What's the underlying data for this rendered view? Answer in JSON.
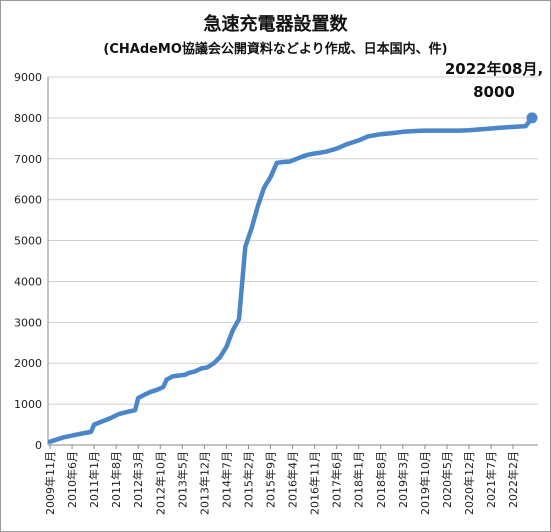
{
  "chart_data": {
    "type": "line",
    "title": "急速充電器設置数",
    "subtitle": "(CHAdeMO協議会公開資料などより作成、日本国内、件)",
    "xlabel": "",
    "ylabel": "",
    "ylim": [
      0,
      9000
    ],
    "yticks": [
      0,
      1000,
      2000,
      3000,
      4000,
      5000,
      6000,
      7000,
      8000,
      9000
    ],
    "grid": "horizontal",
    "line_color": "#4a86c8",
    "x_tick_labels": [
      "2009年11月",
      "2010年6月",
      "2011年1月",
      "2011年8月",
      "2012年3月",
      "2012年10月",
      "2013年5月",
      "2013年12月",
      "2014年7月",
      "2015年2月",
      "2015年9月",
      "2016年4月",
      "2016年11月",
      "2017年6月",
      "2018年1月",
      "2018年8月",
      "2019年3月",
      "2019年10月",
      "2020年5月",
      "2020年12月",
      "2021年7月",
      "2022年2月"
    ],
    "series": [
      {
        "x": [
          "2009-11",
          "2010-01",
          "2010-03",
          "2010-06",
          "2010-09",
          "2010-12",
          "2011-01",
          "2011-03",
          "2011-06",
          "2011-09",
          "2011-12",
          "2012-02",
          "2012-03",
          "2012-05",
          "2012-07",
          "2012-09",
          "2012-11",
          "2012-12",
          "2013-02",
          "2013-04",
          "2013-06",
          "2013-07",
          "2013-09",
          "2013-11",
          "2014-01",
          "2014-03",
          "2014-05",
          "2014-07",
          "2014-09",
          "2014-11",
          "2015-01",
          "2015-03",
          "2015-05",
          "2015-07",
          "2015-09",
          "2015-11",
          "2016-01",
          "2016-03",
          "2016-05",
          "2016-07",
          "2016-09",
          "2016-11",
          "2017-01",
          "2017-03",
          "2017-06",
          "2017-09",
          "2018-01",
          "2018-04",
          "2018-08",
          "2018-12",
          "2019-03",
          "2019-07",
          "2019-10",
          "2020-01",
          "2020-05",
          "2020-09",
          "2020-12",
          "2021-04",
          "2021-07",
          "2021-10",
          "2022-02",
          "2022-06",
          "2022-08"
        ],
        "y": [
          80,
          130,
          180,
          230,
          280,
          320,
          500,
          560,
          650,
          760,
          820,
          850,
          1150,
          1230,
          1300,
          1350,
          1420,
          1600,
          1680,
          1700,
          1720,
          1760,
          1800,
          1870,
          1900,
          2000,
          2150,
          2400,
          2800,
          3080,
          4850,
          5300,
          5850,
          6300,
          6550,
          6900,
          6920,
          6930,
          6990,
          7050,
          7100,
          7130,
          7150,
          7180,
          7250,
          7350,
          7450,
          7550,
          7600,
          7630,
          7660,
          7680,
          7690,
          7690,
          7690,
          7690,
          7700,
          7720,
          7740,
          7760,
          7780,
          7800,
          8000
        ]
      }
    ],
    "annotations": [
      {
        "text": "2022年08月,",
        "x": "2022-08",
        "y": 8000
      },
      {
        "text": "8000",
        "x": "2022-08",
        "y": 8000
      }
    ]
  }
}
